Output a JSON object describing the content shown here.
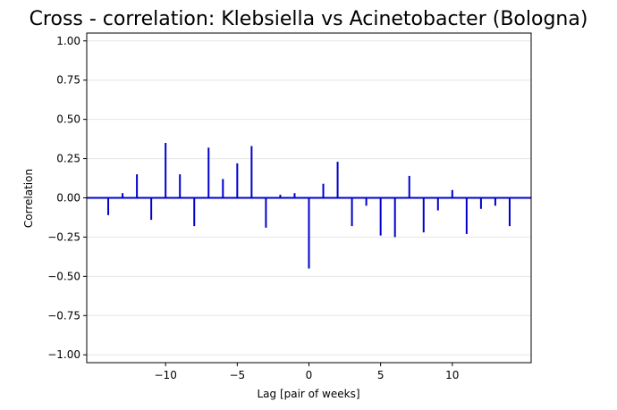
{
  "chart_data": {
    "type": "bar",
    "title": "Cross - correlation: Klebsiella vs Acinetobacter (Bologna)",
    "xlabel": "Lag [pair of weeks]",
    "ylabel": "Correlation",
    "xlim": [
      -15.5,
      15.5
    ],
    "ylim": [
      -1.05,
      1.05
    ],
    "xticks": [
      -10,
      -5,
      0,
      5,
      10
    ],
    "xtick_labels": [
      "−10",
      "−5",
      "0",
      "5",
      "10"
    ],
    "yticks": [
      -1.0,
      -0.75,
      -0.5,
      -0.25,
      0.0,
      0.25,
      0.5,
      0.75,
      1.0
    ],
    "ytick_labels": [
      "−1.00",
      "−0.75",
      "−0.50",
      "−0.25",
      "0.00",
      "0.25",
      "0.50",
      "0.75",
      "1.00"
    ],
    "grid": "horizontal",
    "bar_color": "#0000cc",
    "baseline_color": "#0000cc",
    "x": [
      -14,
      -13,
      -12,
      -11,
      -10,
      -9,
      -8,
      -7,
      -6,
      -5,
      -4,
      -3,
      -2,
      -1,
      0,
      1,
      2,
      3,
      4,
      5,
      6,
      7,
      8,
      9,
      10,
      11,
      12,
      13,
      14
    ],
    "values": [
      -0.11,
      0.03,
      0.15,
      -0.14,
      0.35,
      0.15,
      -0.18,
      0.32,
      0.12,
      0.22,
      0.33,
      -0.19,
      0.02,
      0.03,
      -0.45,
      0.09,
      0.23,
      -0.18,
      -0.05,
      -0.24,
      -0.25,
      0.14,
      -0.22,
      -0.08,
      0.05,
      -0.23,
      -0.07,
      -0.05,
      -0.18
    ]
  }
}
